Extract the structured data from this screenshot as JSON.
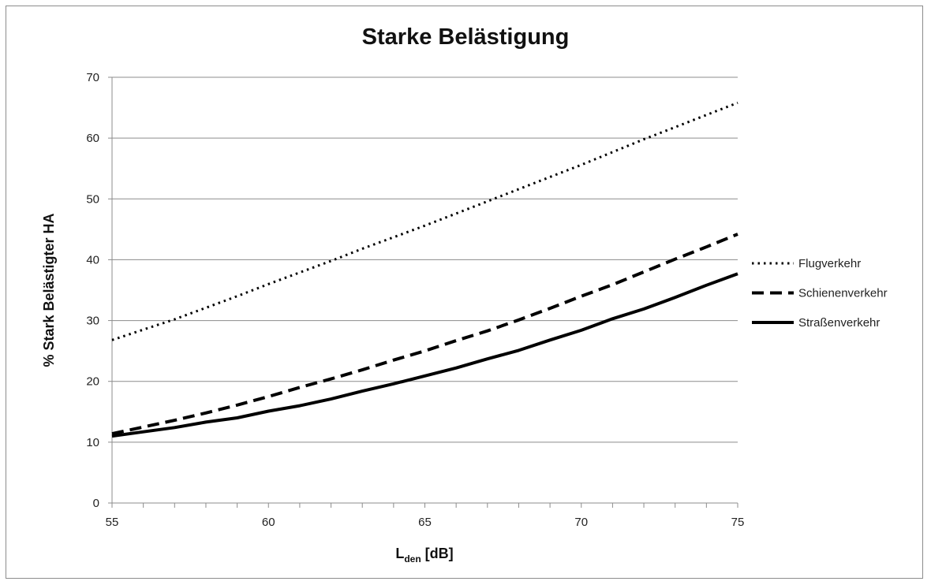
{
  "chart_data": {
    "type": "line",
    "title": "Starke Belästigung",
    "xlabel_main": "L",
    "xlabel_sub": "den",
    "xlabel_tail": " [dB]",
    "ylabel": "% Stark Belästigter HA",
    "xlim": [
      55,
      75
    ],
    "ylim": [
      0,
      70
    ],
    "x_ticks": [
      55,
      60,
      65,
      70,
      75
    ],
    "y_ticks": [
      0,
      10,
      20,
      30,
      40,
      50,
      60,
      70
    ],
    "grid": "horizontal",
    "legend_position": "right",
    "series": [
      {
        "name": "Flugverkehr",
        "style": "dotted",
        "x": [
          55,
          56,
          57,
          58,
          59,
          60,
          61,
          62,
          63,
          64,
          65,
          66,
          67,
          68,
          69,
          70,
          71,
          72,
          73,
          74,
          75
        ],
        "y": [
          26.8,
          28.5,
          30.2,
          32.1,
          34.0,
          36.0,
          37.9,
          39.8,
          41.8,
          43.7,
          45.6,
          47.6,
          49.6,
          51.6,
          53.6,
          55.6,
          57.7,
          59.8,
          61.8,
          63.8,
          65.8
        ]
      },
      {
        "name": "Schienenverkehr",
        "style": "dashed",
        "x": [
          55,
          56,
          57,
          58,
          59,
          60,
          61,
          62,
          63,
          64,
          65,
          66,
          67,
          68,
          69,
          70,
          71,
          72,
          73,
          74,
          75
        ],
        "y": [
          11.4,
          12.5,
          13.6,
          14.8,
          16.1,
          17.5,
          19.0,
          20.4,
          21.9,
          23.5,
          25.0,
          26.7,
          28.3,
          30.1,
          32.0,
          34.0,
          35.9,
          38.0,
          40.1,
          42.1,
          44.2
        ]
      },
      {
        "name": "Straßenverkehr",
        "style": "solid",
        "x": [
          55,
          56,
          57,
          58,
          59,
          60,
          61,
          62,
          63,
          64,
          65,
          66,
          67,
          68,
          69,
          70,
          71,
          72,
          73,
          74,
          75
        ],
        "y": [
          11.0,
          11.7,
          12.4,
          13.3,
          14.0,
          15.1,
          16.0,
          17.1,
          18.4,
          19.6,
          20.9,
          22.2,
          23.7,
          25.1,
          26.8,
          28.4,
          30.3,
          31.9,
          33.8,
          35.8,
          37.7
        ]
      }
    ]
  }
}
